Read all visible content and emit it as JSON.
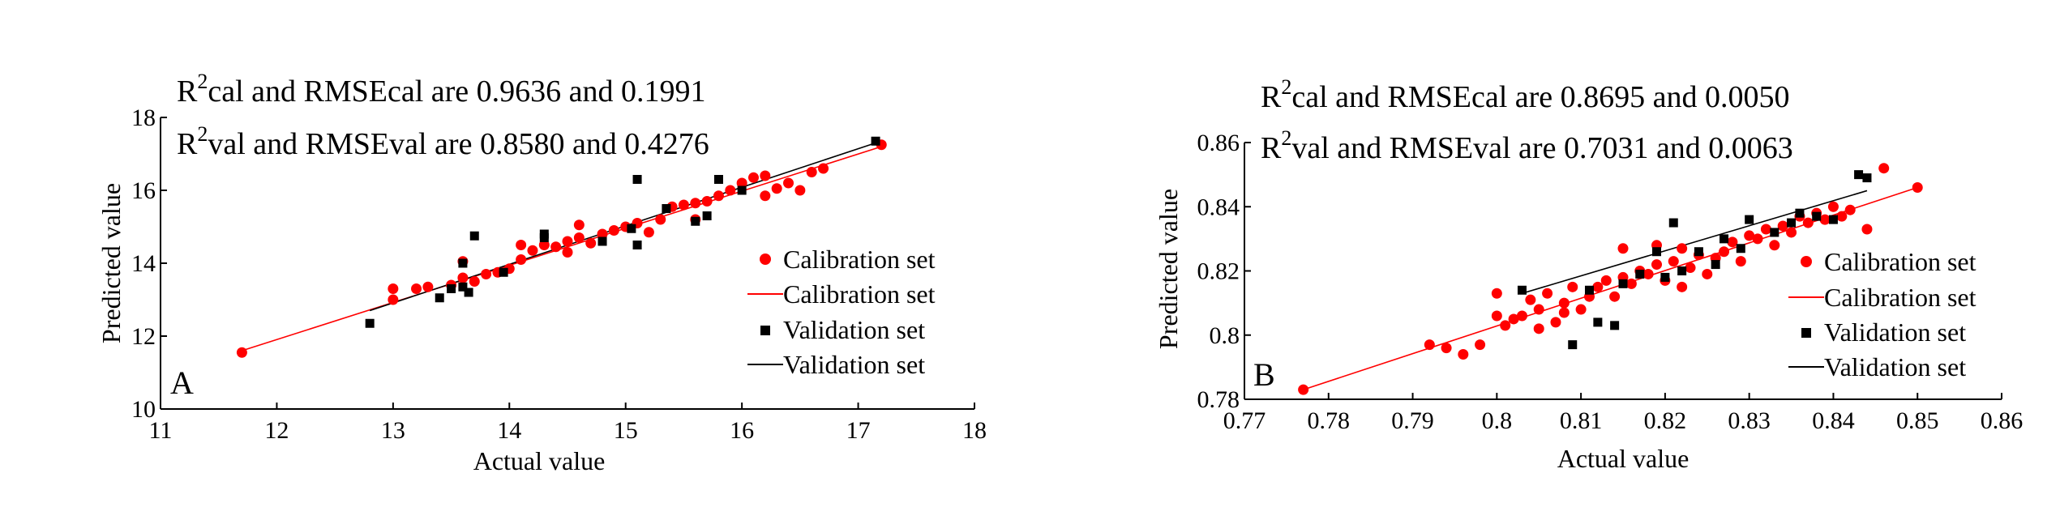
{
  "chart_data": [
    {
      "type": "scatter",
      "panel_label": "A",
      "xlabel": "Actual value",
      "ylabel": "Predicted value",
      "xlim": [
        11,
        18
      ],
      "ylim": [
        10,
        18
      ],
      "xticks": [
        11,
        12,
        13,
        14,
        15,
        16,
        17,
        18
      ],
      "xtick_labels": [
        "11",
        "12",
        "13",
        "14",
        "15",
        "16",
        "17",
        "18"
      ],
      "yticks": [
        10,
        12,
        14,
        16,
        18
      ],
      "ytick_labels": [
        "10",
        "12",
        "14",
        "16",
        "18"
      ],
      "annotation_cal": {
        "r": "R",
        "sup": "2",
        "rest": "cal and RMSEcal are 0.9636 and 0.1991"
      },
      "annotation_val": {
        "r": "R",
        "sup": "2",
        "rest": "val and RMSEval are 0.8580 and 0.4276"
      },
      "legend": {
        "position": "bottom-right",
        "entries": [
          "Calibration set",
          "Calibration set",
          "Validation set",
          "Validation set"
        ]
      },
      "series": [
        {
          "name": "Calibration set",
          "kind": "points",
          "marker": "circle",
          "color": "#ff0000",
          "points": [
            [
              11.7,
              11.55
            ],
            [
              13.0,
              13.0
            ],
            [
              13.0,
              13.3
            ],
            [
              13.2,
              13.3
            ],
            [
              13.3,
              13.35
            ],
            [
              13.5,
              13.4
            ],
            [
              13.6,
              14.05
            ],
            [
              13.6,
              13.6
            ],
            [
              13.7,
              13.5
            ],
            [
              13.8,
              13.7
            ],
            [
              13.9,
              13.75
            ],
            [
              14.0,
              13.85
            ],
            [
              14.1,
              14.1
            ],
            [
              14.1,
              14.5
            ],
            [
              14.2,
              14.35
            ],
            [
              14.3,
              14.5
            ],
            [
              14.4,
              14.45
            ],
            [
              14.5,
              14.3
            ],
            [
              14.5,
              14.6
            ],
            [
              14.6,
              14.7
            ],
            [
              14.6,
              15.05
            ],
            [
              14.7,
              14.55
            ],
            [
              14.8,
              14.8
            ],
            [
              14.9,
              14.9
            ],
            [
              15.0,
              15.0
            ],
            [
              15.1,
              15.1
            ],
            [
              15.2,
              14.85
            ],
            [
              15.3,
              15.2
            ],
            [
              15.4,
              15.55
            ],
            [
              15.5,
              15.6
            ],
            [
              15.6,
              15.2
            ],
            [
              15.6,
              15.65
            ],
            [
              15.7,
              15.7
            ],
            [
              15.8,
              15.85
            ],
            [
              15.9,
              16.0
            ],
            [
              16.0,
              16.2
            ],
            [
              16.1,
              16.35
            ],
            [
              16.2,
              16.4
            ],
            [
              16.2,
              15.85
            ],
            [
              16.3,
              16.05
            ],
            [
              16.4,
              16.2
            ],
            [
              16.5,
              16.0
            ],
            [
              16.6,
              16.5
            ],
            [
              16.7,
              16.6
            ],
            [
              17.2,
              17.25
            ]
          ]
        },
        {
          "name": "Calibration set",
          "kind": "line",
          "color": "#ff0000",
          "points": [
            [
              11.7,
              11.6
            ],
            [
              17.2,
              17.2
            ]
          ]
        },
        {
          "name": "Validation set",
          "kind": "points",
          "marker": "square",
          "color": "#000000",
          "points": [
            [
              12.8,
              12.35
            ],
            [
              13.4,
              13.05
            ],
            [
              13.5,
              13.3
            ],
            [
              13.6,
              13.35
            ],
            [
              13.6,
              14.0
            ],
            [
              13.65,
              13.2
            ],
            [
              13.7,
              14.75
            ],
            [
              13.95,
              13.75
            ],
            [
              14.3,
              14.7
            ],
            [
              14.3,
              14.8
            ],
            [
              14.8,
              14.6
            ],
            [
              15.05,
              14.95
            ],
            [
              15.1,
              14.5
            ],
            [
              15.1,
              16.3
            ],
            [
              15.35,
              15.5
            ],
            [
              15.6,
              15.15
            ],
            [
              15.7,
              15.3
            ],
            [
              15.8,
              16.3
            ],
            [
              16.0,
              16.0
            ],
            [
              17.15,
              17.35
            ]
          ]
        },
        {
          "name": "Validation set",
          "kind": "line",
          "color": "#000000",
          "points": [
            [
              12.8,
              12.7
            ],
            [
              17.15,
              17.3
            ]
          ]
        }
      ]
    },
    {
      "type": "scatter",
      "panel_label": "B",
      "xlabel": "Actual value",
      "ylabel": "Predicted value",
      "xlim": [
        0.77,
        0.86
      ],
      "ylim": [
        0.78,
        0.86
      ],
      "xticks": [
        0.77,
        0.78,
        0.79,
        0.8,
        0.81,
        0.82,
        0.83,
        0.84,
        0.85,
        0.86
      ],
      "xtick_labels": [
        "0.77",
        "0.78",
        "0.79",
        "0.8",
        "0.81",
        "0.82",
        "0.83",
        "0.84",
        "0.85",
        "0.86"
      ],
      "yticks": [
        0.78,
        0.8,
        0.82,
        0.84,
        0.86
      ],
      "ytick_labels": [
        "0.78",
        "0.8",
        "0.82",
        "0.84",
        "0.86"
      ],
      "annotation_cal": {
        "r": "R",
        "sup": "2",
        "rest": "cal and RMSEcal are 0.8695 and 0.0050"
      },
      "annotation_val": {
        "r": "R",
        "sup": "2",
        "rest": "val and RMSEval are 0.7031 and 0.0063"
      },
      "legend": {
        "position": "bottom-right",
        "entries": [
          "Calibration set",
          "Calibration set",
          "Validation set",
          "Validation set"
        ]
      },
      "series": [
        {
          "name": "Calibration set",
          "kind": "points",
          "marker": "circle",
          "color": "#ff0000",
          "points": [
            [
              0.777,
              0.783
            ],
            [
              0.792,
              0.797
            ],
            [
              0.794,
              0.796
            ],
            [
              0.796,
              0.794
            ],
            [
              0.798,
              0.797
            ],
            [
              0.8,
              0.813
            ],
            [
              0.8,
              0.806
            ],
            [
              0.801,
              0.803
            ],
            [
              0.802,
              0.805
            ],
            [
              0.803,
              0.806
            ],
            [
              0.804,
              0.811
            ],
            [
              0.805,
              0.802
            ],
            [
              0.805,
              0.808
            ],
            [
              0.806,
              0.813
            ],
            [
              0.807,
              0.804
            ],
            [
              0.808,
              0.807
            ],
            [
              0.808,
              0.81
            ],
            [
              0.809,
              0.815
            ],
            [
              0.81,
              0.808
            ],
            [
              0.811,
              0.812
            ],
            [
              0.812,
              0.815
            ],
            [
              0.813,
              0.817
            ],
            [
              0.814,
              0.812
            ],
            [
              0.815,
              0.827
            ],
            [
              0.815,
              0.818
            ],
            [
              0.816,
              0.816
            ],
            [
              0.817,
              0.82
            ],
            [
              0.818,
              0.819
            ],
            [
              0.819,
              0.822
            ],
            [
              0.819,
              0.828
            ],
            [
              0.82,
              0.817
            ],
            [
              0.821,
              0.823
            ],
            [
              0.822,
              0.827
            ],
            [
              0.822,
              0.815
            ],
            [
              0.823,
              0.821
            ],
            [
              0.824,
              0.825
            ],
            [
              0.825,
              0.819
            ],
            [
              0.826,
              0.824
            ],
            [
              0.827,
              0.826
            ],
            [
              0.828,
              0.829
            ],
            [
              0.829,
              0.823
            ],
            [
              0.83,
              0.831
            ],
            [
              0.831,
              0.83
            ],
            [
              0.832,
              0.833
            ],
            [
              0.833,
              0.828
            ],
            [
              0.834,
              0.834
            ],
            [
              0.835,
              0.832
            ],
            [
              0.836,
              0.837
            ],
            [
              0.837,
              0.835
            ],
            [
              0.838,
              0.838
            ],
            [
              0.839,
              0.836
            ],
            [
              0.84,
              0.84
            ],
            [
              0.841,
              0.837
            ],
            [
              0.842,
              0.839
            ],
            [
              0.844,
              0.833
            ],
            [
              0.846,
              0.852
            ],
            [
              0.85,
              0.846
            ]
          ]
        },
        {
          "name": "Calibration set",
          "kind": "line",
          "color": "#ff0000",
          "points": [
            [
              0.777,
              0.783
            ],
            [
              0.85,
              0.846
            ]
          ]
        },
        {
          "name": "Validation set",
          "kind": "points",
          "marker": "square",
          "color": "#000000",
          "points": [
            [
              0.803,
              0.814
            ],
            [
              0.809,
              0.797
            ],
            [
              0.811,
              0.814
            ],
            [
              0.812,
              0.804
            ],
            [
              0.814,
              0.803
            ],
            [
              0.815,
              0.816
            ],
            [
              0.817,
              0.819
            ],
            [
              0.819,
              0.826
            ],
            [
              0.82,
              0.818
            ],
            [
              0.821,
              0.835
            ],
            [
              0.822,
              0.82
            ],
            [
              0.824,
              0.826
            ],
            [
              0.826,
              0.822
            ],
            [
              0.827,
              0.83
            ],
            [
              0.829,
              0.827
            ],
            [
              0.83,
              0.836
            ],
            [
              0.833,
              0.832
            ],
            [
              0.835,
              0.835
            ],
            [
              0.836,
              0.838
            ],
            [
              0.838,
              0.837
            ],
            [
              0.84,
              0.836
            ],
            [
              0.843,
              0.85
            ],
            [
              0.844,
              0.849
            ]
          ]
        },
        {
          "name": "Validation set",
          "kind": "line",
          "color": "#000000",
          "points": [
            [
              0.803,
              0.813
            ],
            [
              0.844,
              0.845
            ]
          ]
        }
      ]
    }
  ]
}
